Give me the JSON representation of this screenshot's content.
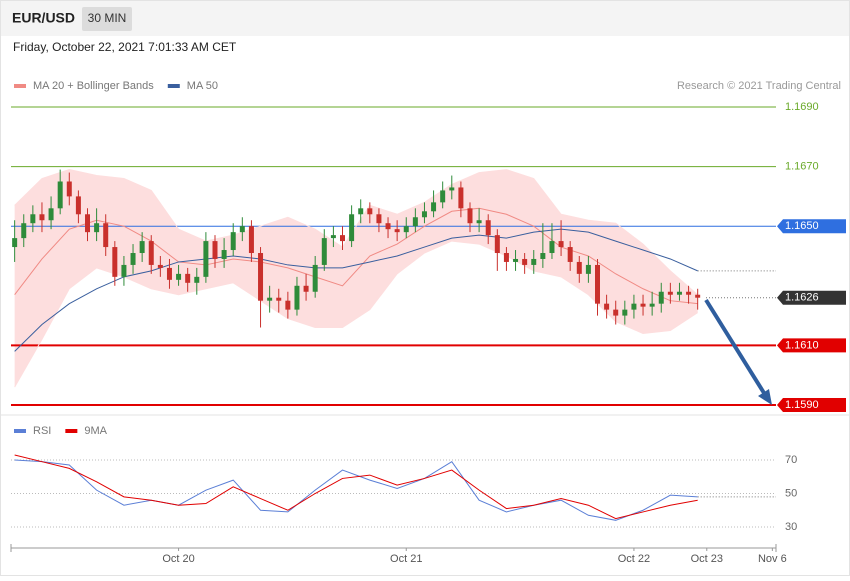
{
  "header": {
    "symbol": "EUR/USD",
    "timeframe": "30 MIN",
    "timestamp": "Friday, October 22, 2021 7:01:33 AM CET"
  },
  "chart_data": [
    {
      "type": "candlestick",
      "credit": "Research © 2021 Trading Central",
      "up_color": "#2e8b3a",
      "down_color": "#c9302c",
      "x": [
        0,
        1,
        2,
        3,
        4,
        5,
        6,
        7,
        8,
        9,
        10,
        11,
        12,
        13,
        14,
        15,
        16,
        17,
        18,
        19,
        20,
        21,
        22,
        23,
        24,
        25,
        26,
        27,
        28,
        29,
        30,
        31,
        32,
        33,
        34,
        35,
        36,
        37,
        38,
        39,
        40,
        41,
        42,
        43,
        44,
        45,
        46,
        47,
        48,
        49,
        50,
        51,
        52,
        53,
        54,
        55,
        56,
        57,
        58,
        59,
        60,
        61,
        62,
        63,
        64,
        65,
        66,
        67,
        68,
        69,
        70,
        71,
        72,
        73,
        74,
        75
      ],
      "open": [
        1.1643,
        1.1646,
        1.1651,
        1.1654,
        1.1652,
        1.1656,
        1.1665,
        1.166,
        1.1654,
        1.1648,
        1.1651,
        1.1643,
        1.1633,
        1.1637,
        1.1641,
        1.1645,
        1.1637,
        1.1636,
        1.1632,
        1.1634,
        1.1631,
        1.1633,
        1.1645,
        1.1639,
        1.1642,
        1.1648,
        1.165,
        1.1641,
        1.1625,
        1.1626,
        1.1625,
        1.1622,
        1.163,
        1.1628,
        1.1637,
        1.1646,
        1.1647,
        1.1645,
        1.1654,
        1.1656,
        1.1654,
        1.1651,
        1.1649,
        1.1648,
        1.165,
        1.1653,
        1.1655,
        1.1658,
        1.1662,
        1.1663,
        1.1656,
        1.1651,
        1.1652,
        1.1647,
        1.1641,
        1.1638,
        1.1639,
        1.1637,
        1.1639,
        1.1641,
        1.1645,
        1.1643,
        1.1638,
        1.1634,
        1.1637,
        1.1624,
        1.1622,
        1.162,
        1.1622,
        1.1624,
        1.1623,
        1.1624,
        1.1628,
        1.1627,
        1.1628,
        1.1627
      ],
      "high": [
        1.1652,
        1.1654,
        1.1657,
        1.1658,
        1.166,
        1.1669,
        1.1668,
        1.1662,
        1.1656,
        1.1656,
        1.1654,
        1.1645,
        1.164,
        1.1644,
        1.1648,
        1.1647,
        1.164,
        1.1639,
        1.1637,
        1.1636,
        1.1636,
        1.1648,
        1.1647,
        1.1646,
        1.1651,
        1.1653,
        1.1652,
        1.1643,
        1.163,
        1.1629,
        1.1628,
        1.1633,
        1.1634,
        1.164,
        1.1649,
        1.165,
        1.165,
        1.1657,
        1.1659,
        1.1658,
        1.1656,
        1.1653,
        1.1652,
        1.1653,
        1.1656,
        1.1658,
        1.1662,
        1.1665,
        1.1667,
        1.1665,
        1.1658,
        1.1656,
        1.1654,
        1.1649,
        1.1643,
        1.1642,
        1.1641,
        1.1642,
        1.1651,
        1.1651,
        1.1652,
        1.1645,
        1.164,
        1.164,
        1.1639,
        1.1627,
        1.1625,
        1.1625,
        1.1627,
        1.1627,
        1.1628,
        1.1631,
        1.1631,
        1.1631,
        1.163,
        1.1629
      ],
      "low": [
        1.1638,
        1.1643,
        1.1648,
        1.1648,
        1.1649,
        1.1654,
        1.1657,
        1.1651,
        1.1645,
        1.1645,
        1.164,
        1.163,
        1.163,
        1.1634,
        1.1638,
        1.1634,
        1.1633,
        1.1629,
        1.163,
        1.1628,
        1.1627,
        1.1631,
        1.1636,
        1.1636,
        1.164,
        1.1645,
        1.1638,
        1.1616,
        1.1621,
        1.1621,
        1.1619,
        1.162,
        1.1625,
        1.1626,
        1.1635,
        1.1643,
        1.1642,
        1.1643,
        1.1651,
        1.1651,
        1.1648,
        1.1646,
        1.1645,
        1.1646,
        1.1648,
        1.1651,
        1.1653,
        1.1656,
        1.1659,
        1.1653,
        1.1648,
        1.1648,
        1.1644,
        1.1635,
        1.1635,
        1.1635,
        1.1634,
        1.1634,
        1.1636,
        1.1639,
        1.164,
        1.1635,
        1.1631,
        1.1631,
        1.162,
        1.1619,
        1.1617,
        1.1617,
        1.1619,
        1.162,
        1.162,
        1.1621,
        1.1624,
        1.1625,
        1.1624,
        1.1622
      ],
      "close": [
        1.1646,
        1.1651,
        1.1654,
        1.1652,
        1.1656,
        1.1665,
        1.166,
        1.1654,
        1.1648,
        1.1651,
        1.1643,
        1.1633,
        1.1637,
        1.1641,
        1.1645,
        1.1637,
        1.1636,
        1.1632,
        1.1634,
        1.1631,
        1.1633,
        1.1645,
        1.1639,
        1.1642,
        1.1648,
        1.165,
        1.1641,
        1.1625,
        1.1626,
        1.1625,
        1.1622,
        1.163,
        1.1628,
        1.1637,
        1.1646,
        1.1647,
        1.1645,
        1.1654,
        1.1656,
        1.1654,
        1.1651,
        1.1649,
        1.1648,
        1.165,
        1.1653,
        1.1655,
        1.1658,
        1.1662,
        1.1663,
        1.1656,
        1.1651,
        1.1652,
        1.1647,
        1.1641,
        1.1638,
        1.1639,
        1.1637,
        1.1639,
        1.1641,
        1.1645,
        1.1643,
        1.1638,
        1.1634,
        1.1637,
        1.1624,
        1.1622,
        1.162,
        1.1622,
        1.1624,
        1.1623,
        1.1624,
        1.1628,
        1.1627,
        1.1628,
        1.1627,
        1.1626
      ],
      "overlays": {
        "x": [
          0,
          3,
          6,
          9,
          12,
          15,
          18,
          21,
          24,
          27,
          30,
          33,
          36,
          39,
          42,
          45,
          48,
          51,
          54,
          57,
          60,
          63,
          66,
          69,
          72,
          75
        ],
        "series": [
          {
            "name": "MA 20 + Bollinger Bands",
            "color": "#f08a84",
            "band_color": "#fddede",
            "values": [
              1.1627,
              1.1639,
              1.1649,
              1.1652,
              1.165,
              1.1645,
              1.1638,
              1.1637,
              1.1639,
              1.1638,
              1.1636,
              1.1633,
              1.163,
              1.164,
              1.1644,
              1.165,
              1.1655,
              1.1656,
              1.1654,
              1.165,
              1.1643,
              1.164,
              1.1634,
              1.1629,
              1.1625,
              1.1624
            ],
            "upper": [
              1.1657,
              1.1666,
              1.1669,
              1.1667,
              1.1666,
              1.1662,
              1.1649,
              1.1645,
              1.1647,
              1.165,
              1.1653,
              1.1649,
              1.1643,
              1.1657,
              1.1654,
              1.1658,
              1.1664,
              1.1668,
              1.1669,
              1.1666,
              1.1654,
              1.1652,
              1.1651,
              1.1644,
              1.1635,
              1.1627
            ],
            "lower": [
              1.1596,
              1.1612,
              1.1629,
              1.1636,
              1.1633,
              1.1629,
              1.1627,
              1.1629,
              1.1631,
              1.1625,
              1.1619,
              1.1616,
              1.1616,
              1.1622,
              1.1634,
              1.1641,
              1.1645,
              1.1644,
              1.164,
              1.1635,
              1.1633,
              1.1627,
              1.1618,
              1.1614,
              1.1615,
              1.1621
            ]
          },
          {
            "name": "MA 50",
            "color": "#3a5f9e",
            "values": [
              1.1608,
              1.1617,
              1.1624,
              1.1629,
              1.1633,
              1.1635,
              1.1638,
              1.1639,
              1.164,
              1.1639,
              1.1637,
              1.1636,
              1.1636,
              1.1638,
              1.164,
              1.1643,
              1.1646,
              1.1647,
              1.1646,
              1.1648,
              1.1649,
              1.1648,
              1.1645,
              1.1642,
              1.1639,
              1.1635
            ]
          }
        ]
      },
      "xlim": [
        -0.4,
        83.6
      ],
      "ylim": [
        1.1586,
        1.17
      ],
      "levels": [
        {
          "value": 1.169,
          "label": "1.1690",
          "color": "#6aaa2a",
          "line": "thin",
          "box": false
        },
        {
          "value": 1.167,
          "label": "1.1670",
          "color": "#6aaa2a",
          "line": "thin",
          "box": false
        },
        {
          "value": 1.165,
          "label": "1.1650",
          "color": "#2f6fe0",
          "line": "thin",
          "box": true
        },
        {
          "value": 1.1626,
          "label": "1.1626",
          "color": "#333333",
          "line": "dotted",
          "box": true
        },
        {
          "value": 1.161,
          "label": "1.1610",
          "color": "#e10000",
          "line": "thick",
          "box": true
        },
        {
          "value": 1.159,
          "label": "1.1590",
          "color": "#e10000",
          "line": "thick",
          "box": true
        }
      ]
    },
    {
      "type": "line",
      "x": [
        0,
        3,
        6,
        9,
        12,
        15,
        18,
        21,
        24,
        27,
        30,
        33,
        36,
        39,
        42,
        45,
        48,
        51,
        54,
        57,
        60,
        63,
        66,
        69,
        72,
        75
      ],
      "series": [
        {
          "name": "RSI",
          "color": "#5b7fd6",
          "values": [
            70,
            69,
            67,
            52,
            43,
            46,
            43,
            52,
            58,
            40,
            39,
            52,
            64,
            58,
            53,
            59,
            69,
            46,
            39,
            43,
            46,
            37,
            34,
            40,
            49,
            48
          ]
        },
        {
          "name": "9MA",
          "color": "#e10000",
          "values": [
            73,
            69,
            65,
            57,
            48,
            46,
            43,
            44,
            54,
            47,
            40,
            50,
            59,
            61,
            55,
            59,
            64,
            52,
            41,
            43,
            47,
            43,
            35,
            39,
            43,
            46
          ]
        }
      ],
      "xlim": [
        -0.4,
        83.6
      ],
      "ylim": [
        22,
        82
      ],
      "yticks": [
        30,
        50,
        70
      ],
      "xticks": [
        {
          "value": 18,
          "label": "Oct 20"
        },
        {
          "value": 43,
          "label": "Oct 21"
        },
        {
          "value": 68,
          "label": "Oct 22"
        },
        {
          "value": 76,
          "label": "Oct 23"
        },
        {
          "value": 83.2,
          "label": "Nov 6"
        }
      ]
    }
  ]
}
